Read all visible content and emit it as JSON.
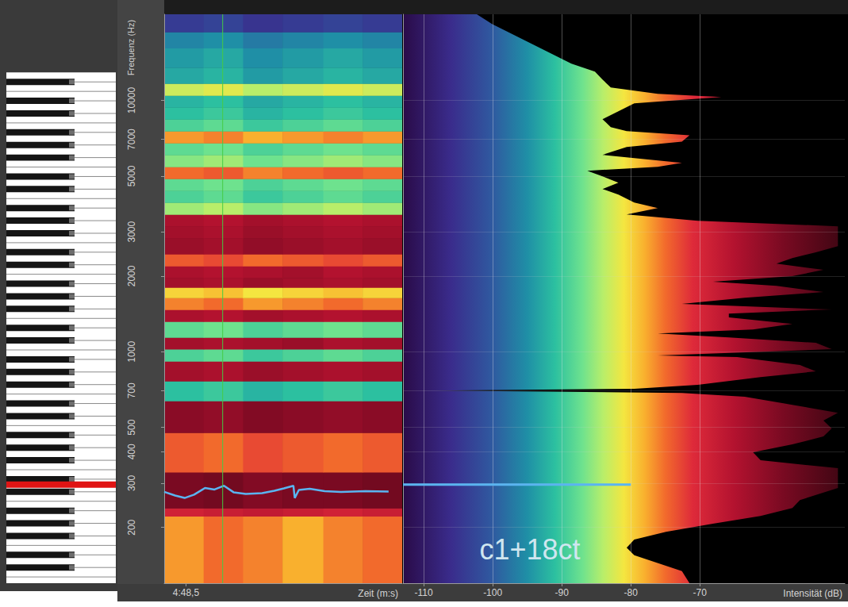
{
  "chart_data": [
    {
      "type": "spectrogram",
      "xlabel": "Zeit (m:s)",
      "ylabel": "Frequenz (Hz)",
      "xlim": [
        288.34,
        290.09
      ],
      "xticks": [
        {
          "value": 288.5,
          "label": "4:48,5"
        }
      ],
      "ylim": [
        120,
        22000
      ],
      "yticks": [
        200,
        300,
        400,
        500,
        700,
        1000,
        2000,
        3000,
        5000,
        7000,
        10000
      ],
      "log": "y",
      "grid": false,
      "time_bins": [
        288.34,
        288.63,
        288.92,
        289.21,
        289.51,
        289.8,
        290.09
      ],
      "freq_bins": [
        120,
        222,
        239,
        332,
        477,
        638,
        765,
        918,
        1024,
        1141,
        1320,
        1472,
        1641,
        1804,
        1968,
        2195,
        2448,
        2830,
        3156,
        3519,
        3923,
        4375,
        4880,
        5443,
        6071,
        6770,
        7548,
        8417,
        9387,
        10469,
        11675,
        13500,
        16180,
        18720,
        22000
      ],
      "cells": [
        [
          -77,
          -75,
          -76,
          -78,
          -76,
          -75
        ],
        [
          -69,
          -68,
          -67,
          -68,
          -69,
          -68
        ],
        [
          -58,
          -57,
          -59,
          -58,
          -58,
          -57
        ],
        [
          -74,
          -75,
          -73,
          -74,
          -75,
          -74
        ],
        [
          -60,
          -61,
          -59,
          -60,
          -61,
          -60
        ],
        [
          -91,
          -90,
          -92,
          -91,
          -90,
          -91
        ],
        [
          -63,
          -64,
          -62,
          -63,
          -64,
          -63
        ],
        [
          -89,
          -88,
          -90,
          -89,
          -88,
          -89
        ],
        [
          -63,
          -64,
          -63,
          -62,
          -64,
          -63
        ],
        [
          -88,
          -87,
          -89,
          -88,
          -87,
          -88
        ],
        [
          -64,
          -65,
          -63,
          -64,
          -65,
          -64
        ],
        [
          -76,
          -75,
          -77,
          -76,
          -75,
          -76
        ],
        [
          -80,
          -79,
          -81,
          -80,
          -79,
          -80
        ],
        [
          -63,
          -64,
          -62,
          -63,
          -64,
          -63
        ],
        [
          -64,
          -65,
          -64,
          -63,
          -65,
          -64
        ],
        [
          -74,
          -73,
          -75,
          -74,
          -73,
          -74
        ],
        [
          -62,
          -63,
          -61,
          -62,
          -63,
          -62
        ],
        [
          -63,
          -64,
          -62,
          -63,
          -64,
          -63
        ],
        [
          -64,
          -65,
          -63,
          -64,
          -65,
          -64
        ],
        [
          -85,
          -84,
          -86,
          -85,
          -84,
          -85
        ],
        [
          -89,
          -88,
          -90,
          -89,
          -88,
          -89
        ],
        [
          -88,
          -87,
          -89,
          -88,
          -87,
          -88
        ],
        [
          -75,
          -74,
          -76,
          -75,
          -74,
          -75
        ],
        [
          -86,
          -85,
          -87,
          -86,
          -85,
          -86
        ],
        [
          -88,
          -87,
          -89,
          -88,
          -87,
          -88
        ],
        [
          -77,
          -76,
          -78,
          -77,
          -76,
          -77
        ],
        [
          -89,
          -88,
          -90,
          -89,
          -88,
          -89
        ],
        [
          -91,
          -90,
          -92,
          -91,
          -90,
          -91
        ],
        [
          -92,
          -91,
          -93,
          -92,
          -91,
          -92
        ],
        [
          -83,
          -82,
          -84,
          -83,
          -82,
          -83
        ],
        [
          -93,
          -92,
          -94,
          -93,
          -92,
          -93
        ],
        [
          -94,
          -93,
          -95,
          -94,
          -93,
          -94
        ],
        [
          -96,
          -95,
          -97,
          -96,
          -95,
          -96
        ],
        [
          -104,
          -103,
          -105,
          -104,
          -103,
          -104
        ]
      ],
      "color_range": [
        -113,
        -49
      ],
      "pitch_track": {
        "color": "#5ab4f0",
        "x": [
          288.34,
          288.42,
          288.49,
          288.56,
          288.64,
          288.71,
          288.78,
          288.85,
          288.94,
          289.06,
          289.15,
          289.22,
          289.29,
          289.3,
          289.33,
          289.41,
          289.52,
          289.64,
          289.82,
          289.99
        ],
        "values": [
          277,
          268,
          262,
          270,
          287,
          283,
          293,
          276,
          272,
          274,
          280,
          286,
          293,
          262,
          282,
          285,
          279,
          277,
          279,
          278
        ]
      },
      "cursor": {
        "x": 288.77,
        "color": "#44cc44"
      }
    },
    {
      "type": "area",
      "orientation": "horizontal",
      "xlabel": "Intensität (dB)",
      "xlim": [
        -113,
        -49
      ],
      "xticks": [
        -110,
        -100,
        -90,
        -80,
        -70
      ],
      "ylim": [
        120,
        22000
      ],
      "yticks": [
        200,
        300,
        400,
        500,
        700,
        1000,
        2000,
        3000,
        5000,
        7000,
        10000
      ],
      "log": "y",
      "grid": true,
      "tick_labels": "x",
      "annotation": "c1+18ct",
      "y": [
        120,
        134,
        155,
        166,
        179,
        192,
        207,
        222,
        239,
        257,
        287,
        309,
        344,
        370,
        398,
        428,
        460,
        495,
        532,
        572,
        615,
        662,
        686,
        701,
        712,
        738,
        793,
        835,
        885,
        952,
        966,
        1024,
        1085,
        1141,
        1183,
        1227,
        1291,
        1369,
        1419,
        1472,
        1549,
        1641,
        1727,
        1830,
        1898,
        1997,
        2117,
        2243,
        2360,
        2484,
        2632,
        2830,
        3044,
        3156,
        3320,
        3519,
        3730,
        3923,
        4219,
        4440,
        4708,
        4987,
        5248,
        5443,
        5642,
        6071,
        6525,
        6850,
        7260,
        7548,
        7825,
        8417,
        9051,
        9734,
        10320,
        10620,
        11251,
        12100,
        13020,
        13995,
        15050,
        16180,
        17400,
        18720,
        20130,
        22000
      ],
      "values": [
        -71.5,
        -72.6,
        -79.5,
        -80.6,
        -79.5,
        -74.9,
        -68.1,
        -61.2,
        -56.6,
        -55.5,
        -50,
        -50,
        -50,
        -61.2,
        -62.3,
        -56.6,
        -52.1,
        -50.9,
        -52.1,
        -50,
        -56.6,
        -63.5,
        -72.6,
        -108.6,
        -79.5,
        -70.3,
        -61.2,
        -53.2,
        -55.5,
        -64.6,
        -76.1,
        -50.9,
        -53.2,
        -65.8,
        -76.1,
        -62.3,
        -56.6,
        -65.8,
        -65.8,
        -50.9,
        -72.6,
        -63.5,
        -52.1,
        -58.9,
        -68.1,
        -56.6,
        -52.1,
        -58.9,
        -56.6,
        -53.2,
        -50,
        -50,
        -50,
        -50,
        -70.3,
        -80.6,
        -76.1,
        -79.5,
        -81.8,
        -84.1,
        -81.8,
        -84.1,
        -86.3,
        -76.1,
        -72.6,
        -84.1,
        -80.6,
        -72.6,
        -71.5,
        -80.6,
        -82.9,
        -84.1,
        -81.8,
        -79.5,
        -66.9,
        -76.1,
        -82.9,
        -84.1,
        -85.2,
        -88.6,
        -90.9,
        -93.2,
        -95.5,
        -97.8,
        -100.1,
        -102.3
      ],
      "pitch_marker": {
        "y": 296,
        "value": -80,
        "color": "#5ab4f0"
      }
    }
  ]
}
